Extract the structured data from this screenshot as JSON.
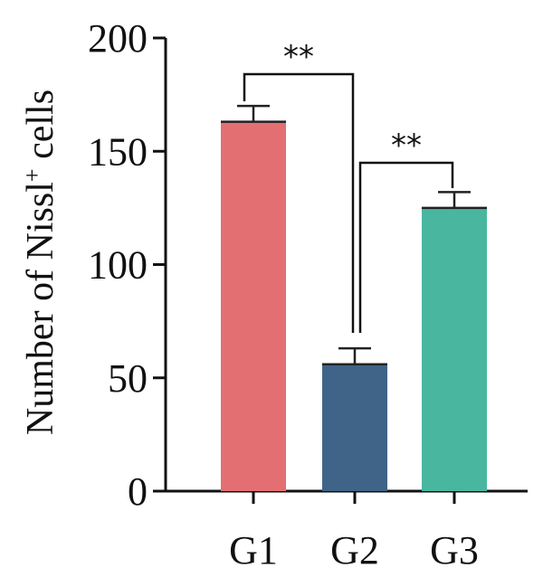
{
  "chart_data": {
    "type": "bar",
    "categories": [
      "G1",
      "G2",
      "G3"
    ],
    "values": [
      163,
      56,
      125
    ],
    "error_bars": [
      7,
      7,
      7
    ],
    "colors": [
      "#e36f73",
      "#3f6488",
      "#49b69f"
    ],
    "ylabel_main": "Number of Nissl",
    "ylabel_sup": "+",
    "ylabel_tail": " cells",
    "xlabel": "",
    "ylim": [
      0,
      200
    ],
    "yticks": [
      0,
      50,
      100,
      150,
      200
    ],
    "significance": [
      {
        "from": 0,
        "to": 1,
        "label": "**"
      },
      {
        "from": 1,
        "to": 2,
        "label": "**"
      }
    ],
    "grid": false
  }
}
